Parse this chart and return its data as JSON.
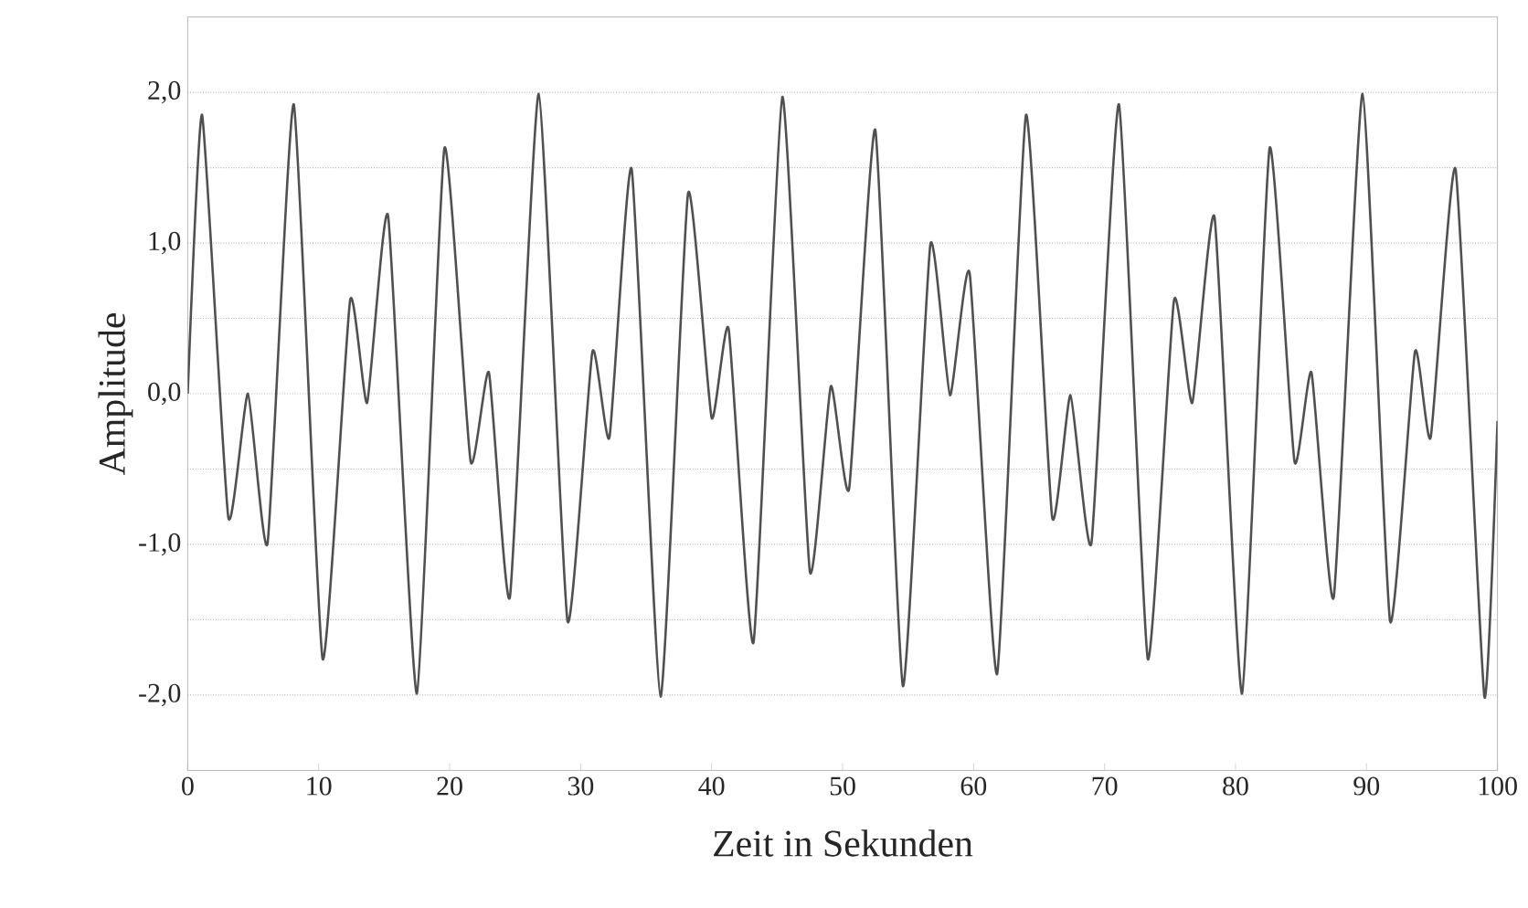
{
  "chart_data": {
    "type": "line",
    "xlabel": "Zeit in Sekunden",
    "ylabel": "Amplitude",
    "xlim": [
      0,
      100
    ],
    "ylim": [
      -2.5,
      2.5
    ],
    "xticks": [
      0,
      10,
      20,
      30,
      40,
      50,
      60,
      70,
      80,
      90,
      100
    ],
    "yticks": [
      {
        "value": -2,
        "label": "-2,0"
      },
      {
        "value": -1.5,
        "label": null
      },
      {
        "value": -1,
        "label": "-1,0"
      },
      {
        "value": -0.5,
        "label": null
      },
      {
        "value": 0,
        "label": "0,0"
      },
      {
        "value": 0.5,
        "label": null
      },
      {
        "value": 1,
        "label": "1,0"
      },
      {
        "value": 1.5,
        "label": null
      },
      {
        "value": 2,
        "label": "2,0"
      }
    ],
    "grid": "y",
    "series": [
      {
        "color": "#505050",
        "x": [
          0,
          1.1,
          3.1,
          4.6,
          6.1,
          8.1,
          10.3,
          12.4,
          13.7,
          15.3,
          17.5,
          19.6,
          21.6,
          23.0,
          24.6,
          26.8,
          29.0,
          30.9,
          32.2,
          33.9,
          36.1,
          38.2,
          40.0,
          41.3,
          43.2,
          45.4,
          47.5,
          49.1,
          50.5,
          52.5,
          54.6,
          56.7,
          58.2,
          59.7,
          61.8,
          64.0,
          66.0,
          67.4,
          69.0,
          71.1,
          73.3,
          75.3,
          76.7,
          78.4,
          80.5,
          82.6,
          84.5,
          85.8,
          87.5,
          89.7,
          91.8,
          93.7,
          94.9,
          96.8,
          99.0,
          100
        ],
        "values": [
          0,
          1.85,
          -0.82,
          0.0,
          -0.99,
          1.92,
          -1.76,
          0.62,
          -0.06,
          1.18,
          -1.99,
          1.63,
          -0.45,
          0.14,
          -1.35,
          1.99,
          -1.51,
          0.28,
          -0.29,
          1.49,
          -2.01,
          1.33,
          -0.16,
          0.43,
          -1.65,
          1.97,
          -1.18,
          0.05,
          -0.63,
          1.75,
          -1.94,
          0.99,
          -0.01,
          0.8,
          -1.86,
          1.85,
          -0.82,
          -0.01,
          -0.99,
          1.92,
          -1.76,
          0.62,
          -0.06,
          1.17,
          -1.99,
          1.63,
          -0.45,
          0.14,
          -1.35,
          1.99,
          -1.51,
          0.28,
          -0.29,
          1.49,
          -2.01,
          -0.18
        ]
      }
    ]
  }
}
